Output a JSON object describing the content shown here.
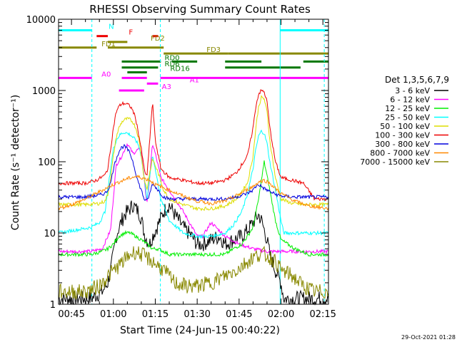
{
  "chart_data": {
    "type": "line",
    "title": "RHESSI Observing Summary Count Rates",
    "xlabel": "Start Time (24-Jun-15 00:40:22)",
    "ylabel": "Count Rate (s⁻¹ detector⁻¹)",
    "yscale": "log",
    "ylim": [
      1,
      10000
    ],
    "xlim_minutes": [
      40.37,
      137
    ],
    "x_ticks": [
      {
        "m": 45,
        "label": "00:45"
      },
      {
        "m": 60,
        "label": "01:00"
      },
      {
        "m": 75,
        "label": "01:15"
      },
      {
        "m": 90,
        "label": "01:30"
      },
      {
        "m": 105,
        "label": "01:45"
      },
      {
        "m": 120,
        "label": "02:00"
      },
      {
        "m": 135,
        "label": "02:15"
      }
    ],
    "y_ticks": [
      {
        "v": 1,
        "label": "1"
      },
      {
        "v": 10,
        "label": "10"
      },
      {
        "v": 100,
        "label": "100"
      },
      {
        "v": 1000,
        "label": "1000"
      },
      {
        "v": 10000,
        "label": "10000"
      }
    ],
    "legend_title": "Det 1,3,5,6,7,9",
    "legend_position": "right",
    "series": [
      {
        "name": "3 - 6 keV",
        "color": "#000000",
        "x": [
          40.4,
          52,
          56,
          58,
          59,
          60,
          61,
          62,
          63,
          64,
          65,
          66,
          67,
          68,
          69,
          70,
          71,
          72,
          73,
          74,
          76,
          78,
          80,
          82,
          85,
          88,
          90,
          92,
          95,
          98,
          100,
          103,
          106,
          108,
          110,
          111,
          112,
          113,
          114,
          115,
          116,
          118,
          120,
          121,
          128,
          132,
          137
        ],
        "y": [
          1.2,
          1.2,
          1.5,
          2,
          3,
          5,
          9,
          12,
          15,
          18,
          20,
          22,
          25,
          22,
          20,
          16,
          10,
          8,
          7,
          9,
          13,
          20,
          25,
          18,
          12,
          9,
          7,
          7,
          8,
          9,
          7,
          8,
          9,
          11,
          14,
          16,
          18,
          15,
          11,
          8,
          5,
          3,
          2,
          1.2,
          1.2,
          1.2,
          1.2
        ]
      },
      {
        "name": "6 - 12 keV",
        "color": "#ff00ff",
        "x": [
          40.4,
          52,
          56,
          59,
          61,
          63,
          65,
          67,
          69,
          70,
          71,
          72,
          73,
          74,
          75,
          77,
          80,
          85,
          90,
          92,
          95,
          100,
          105,
          110,
          115,
          120,
          125,
          130,
          137
        ],
        "y": [
          5.5,
          5.5,
          6,
          11,
          90,
          120,
          180,
          130,
          150,
          140,
          60,
          25,
          60,
          180,
          130,
          60,
          40,
          20,
          9,
          9,
          14,
          9,
          7,
          6,
          5.5,
          5.5,
          5.5,
          5.5,
          5.5
        ]
      },
      {
        "name": "12 - 25 keV",
        "color": "#00ee00",
        "x": [
          40.4,
          52,
          56,
          58,
          60,
          62,
          64,
          66,
          68,
          70,
          72,
          74,
          76,
          78,
          80,
          85,
          90,
          95,
          100,
          103,
          106,
          108,
          110,
          112,
          114,
          116,
          118,
          120,
          125,
          130,
          137
        ],
        "y": [
          5,
          5,
          5.5,
          6,
          7,
          9,
          10,
          10,
          9,
          8,
          7,
          6,
          6,
          5.5,
          5,
          5,
          5,
          5,
          5,
          6,
          7,
          9,
          12,
          30,
          100,
          40,
          15,
          8,
          6,
          5,
          5
        ]
      },
      {
        "name": "25 - 50 keV",
        "color": "#00ffff",
        "x": [
          40.4,
          52,
          55,
          57,
          58,
          59,
          60,
          61,
          62,
          63,
          64,
          65,
          66,
          67,
          68,
          69,
          70,
          71,
          72,
          73,
          74,
          75,
          77,
          80,
          85,
          90,
          95,
          100,
          103,
          106,
          108,
          110,
          111,
          112,
          113,
          114,
          115,
          116,
          118,
          120,
          121,
          128,
          137
        ],
        "y": [
          10,
          12,
          14,
          20,
          40,
          80,
          150,
          200,
          230,
          250,
          260,
          250,
          240,
          220,
          200,
          170,
          120,
          60,
          30,
          60,
          120,
          80,
          30,
          15,
          10,
          9,
          9,
          10,
          13,
          20,
          35,
          80,
          150,
          230,
          270,
          250,
          180,
          100,
          40,
          15,
          10,
          10,
          10
        ]
      },
      {
        "name": "50 - 100 keV",
        "color": "#dddd00",
        "x": [
          40.4,
          50,
          55,
          57,
          58,
          59,
          60,
          61,
          62,
          63,
          64,
          65,
          66,
          67,
          68,
          69,
          70,
          71,
          72,
          73,
          74,
          76,
          78,
          80,
          85,
          90,
          95,
          100,
          104,
          108,
          110,
          111,
          112,
          113,
          114,
          115,
          116,
          118,
          120,
          124,
          128,
          132,
          137
        ],
        "y": [
          25,
          25,
          26,
          28,
          35,
          60,
          120,
          220,
          300,
          360,
          390,
          400,
          390,
          360,
          300,
          220,
          120,
          60,
          40,
          70,
          110,
          70,
          40,
          30,
          25,
          22,
          22,
          24,
          30,
          50,
          120,
          300,
          600,
          800,
          760,
          500,
          200,
          60,
          30,
          26,
          25,
          25,
          25
        ]
      },
      {
        "name": "100 - 300 keV",
        "color": "#ee0000",
        "x": [
          40.4,
          50,
          54,
          57,
          58,
          59,
          60,
          61,
          62,
          63,
          64,
          65,
          66,
          67,
          68,
          69,
          70,
          71,
          72,
          73,
          74,
          75,
          77,
          80,
          85,
          90,
          95,
          100,
          104,
          108,
          110,
          111,
          112,
          113,
          114,
          115,
          116,
          118,
          120,
          124,
          128,
          132,
          137
        ],
        "y": [
          50,
          50,
          55,
          65,
          80,
          150,
          300,
          500,
          600,
          650,
          660,
          640,
          600,
          520,
          400,
          250,
          150,
          80,
          60,
          200,
          700,
          200,
          80,
          60,
          55,
          50,
          50,
          55,
          70,
          120,
          300,
          600,
          900,
          1000,
          950,
          700,
          300,
          100,
          60,
          55,
          50,
          30,
          30
        ]
      },
      {
        "name": "300 - 800 keV",
        "color": "#0000dd",
        "x": [
          40.4,
          50,
          55,
          57,
          58,
          59,
          60,
          61,
          62,
          63,
          64,
          65,
          66,
          67,
          68,
          69,
          70,
          71,
          72,
          73,
          74,
          76,
          78,
          80,
          85,
          90,
          95,
          100,
          104,
          108,
          110,
          111,
          112,
          113,
          114,
          115,
          116,
          118,
          120,
          124,
          128,
          132,
          137
        ],
        "y": [
          32,
          32,
          34,
          36,
          40,
          50,
          80,
          110,
          140,
          160,
          165,
          150,
          130,
          100,
          70,
          50,
          40,
          30,
          28,
          35,
          50,
          40,
          32,
          30,
          30,
          30,
          30,
          30,
          32,
          36,
          40,
          45,
          48,
          45,
          42,
          40,
          38,
          35,
          33,
          32,
          32,
          32,
          32
        ]
      },
      {
        "name": "800 - 7000 keV",
        "color": "#ff8800",
        "x": [
          40.4,
          45,
          50,
          55,
          60,
          65,
          68,
          70,
          73,
          75,
          80,
          85,
          90,
          95,
          100,
          105,
          110,
          112,
          114,
          116,
          118,
          120,
          125,
          130,
          137
        ],
        "y": [
          22,
          25,
          30,
          38,
          48,
          58,
          62,
          60,
          55,
          48,
          40,
          33,
          28,
          26,
          28,
          35,
          45,
          52,
          55,
          50,
          42,
          36,
          28,
          24,
          22
        ]
      },
      {
        "name": "7000 - 15000 keV",
        "color": "#888800",
        "x": [
          40.4,
          50,
          55,
          58,
          62,
          66,
          68,
          70,
          74,
          78,
          82,
          86,
          90,
          95,
          100,
          104,
          108,
          110,
          112,
          114,
          116,
          118,
          120,
          124,
          128,
          132,
          137
        ],
        "y": [
          1.5,
          1.5,
          1.8,
          2.5,
          3.5,
          5,
          5.5,
          5,
          4,
          3,
          2,
          1.8,
          1.8,
          2,
          2.5,
          3,
          4,
          4.5,
          5,
          5,
          4.5,
          4,
          3,
          2.5,
          1.8,
          1.5,
          1.5
        ]
      }
    ],
    "vertical_lines": [
      {
        "m": 52.3,
        "color": "#00ffff",
        "style": "dashed"
      },
      {
        "m": 76.8,
        "color": "#00ffff",
        "style": "dashed"
      },
      {
        "m": 119.7,
        "color": "#00ffff",
        "style": "solid"
      },
      {
        "m": 135.5,
        "color": "#00ffff",
        "style": "dashed"
      }
    ],
    "state_flags": [
      {
        "label": "N",
        "color": "#00ffff",
        "segments": [
          [
            40.4,
            52.3
          ],
          [
            119.7,
            137
          ]
        ],
        "level": 7000
      },
      {
        "label": "F",
        "color": "#ee0000",
        "segments": [
          [
            54,
            58
          ],
          [
            74,
            76
          ]
        ],
        "level": 5800
      },
      {
        "label": "FD1",
        "color": "#888800",
        "segments": [
          [
            40.4,
            54
          ],
          [
            58,
            78
          ]
        ],
        "level": 4000
      },
      {
        "label": "FD2",
        "color": "#888800",
        "segments": [
          [
            58,
            65
          ]
        ],
        "level": 4800
      },
      {
        "label": "FD3",
        "color": "#888800",
        "segments": [
          [
            78,
            101
          ],
          [
            101,
            137
          ]
        ],
        "level": 3300
      },
      {
        "label": "RD0",
        "color": "#007700",
        "segments": [
          [
            63,
            77
          ],
          [
            81,
            90
          ],
          [
            100,
            113
          ],
          [
            128,
            137
          ]
        ],
        "level": 2550
      },
      {
        "label": "RD6",
        "color": "#007700",
        "segments": [
          [
            63,
            76
          ],
          [
            100,
            127
          ]
        ],
        "level": 2100
      },
      {
        "label": "RD16",
        "color": "#007700",
        "segments": [
          [
            65,
            72
          ]
        ],
        "level": 1800
      },
      {
        "label": "A0",
        "color": "#ff00ff",
        "segments": [
          [
            40.4,
            52.3
          ],
          [
            63,
            72
          ],
          [
            76.8,
            137
          ]
        ],
        "level": 1500
      },
      {
        "label": "A1",
        "color": "#ff00ff",
        "segments": [
          [
            72,
            76
          ]
        ],
        "level": 1250
      },
      {
        "label": "A3",
        "color": "#ff00ff",
        "segments": [
          [
            62,
            71
          ]
        ],
        "level": 1000
      }
    ],
    "timestamp": "29-Oct-2021 01:28"
  }
}
